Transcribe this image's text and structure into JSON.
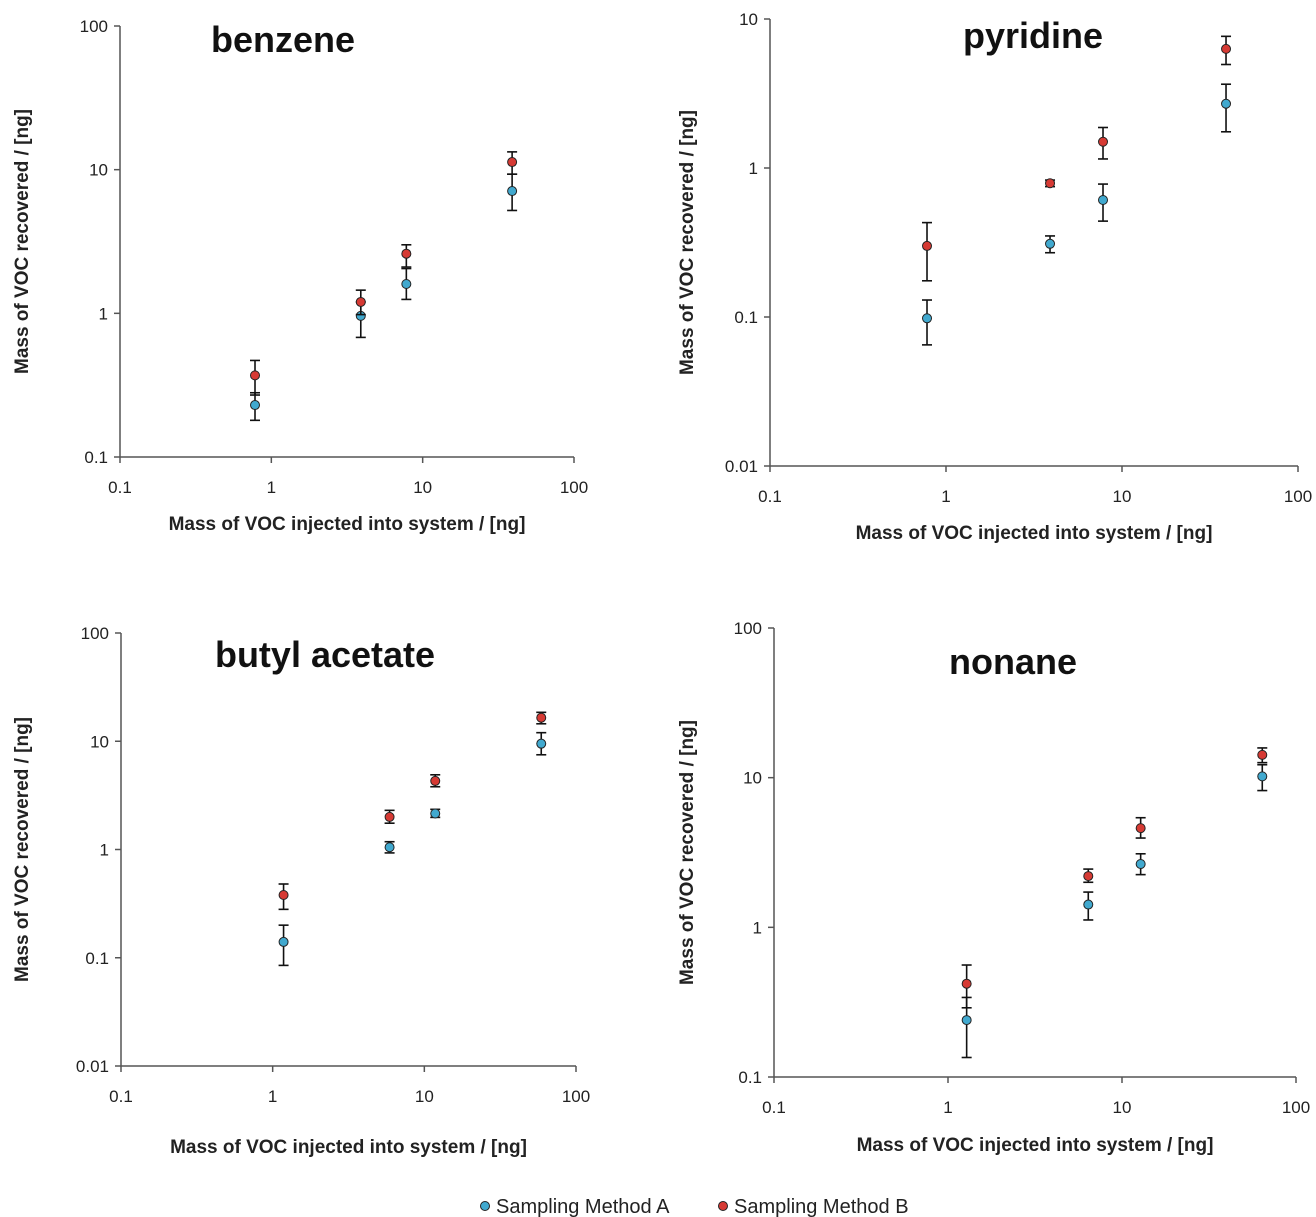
{
  "chart_data": [
    {
      "type": "scatter",
      "title": "benzene",
      "xlabel": "Mass of VOC injected into system / [ng]",
      "ylabel": "Mass of VOC recovered / [ng]",
      "x_scale": "log",
      "y_scale": "log",
      "xlim": [
        0.1,
        100
      ],
      "ylim": [
        0.1,
        100
      ],
      "x_ticks": [
        "0.1",
        "1",
        "10",
        "100"
      ],
      "y_ticks": [
        "0.1",
        "1",
        "10",
        "100"
      ],
      "grid": false,
      "series": [
        {
          "name": "Sampling Method A",
          "color": "#41a9cf",
          "x": [
            0.78,
            3.9,
            7.8,
            39
          ],
          "y": [
            0.23,
            0.96,
            1.6,
            7.1
          ],
          "err_low": [
            0.18,
            0.68,
            1.25,
            5.2
          ],
          "err_high": [
            0.28,
            1.2,
            2.05,
            9.3
          ]
        },
        {
          "name": "Sampling Method B",
          "color": "#d63a34",
          "x": [
            0.78,
            3.9,
            7.8,
            39
          ],
          "y": [
            0.37,
            1.2,
            2.6,
            11.3
          ],
          "err_low": [
            0.27,
            0.98,
            2.1,
            9.3
          ],
          "err_high": [
            0.47,
            1.45,
            3.0,
            13.3
          ]
        }
      ]
    },
    {
      "type": "scatter",
      "title": "pyridine",
      "xlabel": "Mass of VOC injected into system / [ng]",
      "ylabel": "Mass of VOC recovered / [ng]",
      "x_scale": "log",
      "y_scale": "log",
      "xlim": [
        0.1,
        100
      ],
      "ylim": [
        0.01,
        10
      ],
      "x_ticks": [
        "0.1",
        "1",
        "10",
        "100"
      ],
      "y_ticks": [
        "0.01",
        "0.1",
        "1",
        "10"
      ],
      "grid": false,
      "series": [
        {
          "name": "Sampling Method A",
          "color": "#41a9cf",
          "x": [
            0.78,
            3.9,
            7.8,
            39
          ],
          "y": [
            0.098,
            0.31,
            0.61,
            2.7
          ],
          "err_low": [
            0.065,
            0.27,
            0.44,
            1.75
          ],
          "err_high": [
            0.13,
            0.35,
            0.78,
            3.65
          ]
        },
        {
          "name": "Sampling Method B",
          "color": "#d63a34",
          "x": [
            0.78,
            3.9,
            7.8,
            39
          ],
          "y": [
            0.3,
            0.79,
            1.5,
            6.3
          ],
          "err_low": [
            0.175,
            0.75,
            1.15,
            4.95
          ],
          "err_high": [
            0.43,
            0.83,
            1.87,
            7.65
          ]
        }
      ]
    },
    {
      "type": "scatter",
      "title": "butyl acetate",
      "xlabel": "Mass of VOC injected into system / [ng]",
      "ylabel": "Mass of VOC recovered / [ng]",
      "x_scale": "log",
      "y_scale": "log",
      "xlim": [
        0.1,
        100
      ],
      "ylim": [
        0.01,
        100
      ],
      "x_ticks": [
        "0.1",
        "1",
        "10",
        "100"
      ],
      "y_ticks": [
        "0.01",
        "0.1",
        "1",
        "10",
        "100"
      ],
      "grid": false,
      "series": [
        {
          "name": "Sampling Method A",
          "color": "#41a9cf",
          "x": [
            1.18,
            5.9,
            11.8,
            59
          ],
          "y": [
            0.14,
            1.05,
            2.15,
            9.5
          ],
          "err_low": [
            0.085,
            0.93,
            1.98,
            7.5
          ],
          "err_high": [
            0.2,
            1.18,
            2.35,
            12.0
          ]
        },
        {
          "name": "Sampling Method B",
          "color": "#d63a34",
          "x": [
            1.18,
            5.9,
            11.8,
            59
          ],
          "y": [
            0.38,
            2.0,
            4.3,
            16.5
          ],
          "err_low": [
            0.28,
            1.75,
            3.8,
            14.5
          ],
          "err_high": [
            0.48,
            2.3,
            4.9,
            18.5
          ]
        }
      ]
    },
    {
      "type": "scatter",
      "title": "nonane",
      "xlabel": "Mass of VOC injected into system / [ng]",
      "ylabel": "Mass of VOC recovered / [ng]",
      "x_scale": "log",
      "y_scale": "log",
      "xlim": [
        0.1,
        100
      ],
      "ylim": [
        0.1,
        100
      ],
      "x_ticks": [
        "0.1",
        "1",
        "10",
        "100"
      ],
      "y_ticks": [
        "0.1",
        "1",
        "10",
        "100"
      ],
      "grid": false,
      "series": [
        {
          "name": "Sampling Method A",
          "color": "#41a9cf",
          "x": [
            1.28,
            6.4,
            12.8,
            64
          ],
          "y": [
            0.24,
            1.42,
            2.65,
            10.2
          ],
          "err_low": [
            0.135,
            1.12,
            2.25,
            8.2
          ],
          "err_high": [
            0.34,
            1.72,
            3.1,
            12.2
          ]
        },
        {
          "name": "Sampling Method B",
          "color": "#d63a34",
          "x": [
            1.28,
            6.4,
            12.8,
            64
          ],
          "y": [
            0.42,
            2.2,
            4.6,
            14.2
          ],
          "err_low": [
            0.29,
            2.0,
            3.95,
            12.6
          ],
          "err_high": [
            0.56,
            2.45,
            5.4,
            15.8
          ]
        }
      ]
    }
  ],
  "legend": {
    "position": "bottom-center",
    "items": [
      {
        "label": "Sampling Method A",
        "color": "#41a9cf"
      },
      {
        "label": "Sampling Method B",
        "color": "#d63a34"
      }
    ]
  }
}
